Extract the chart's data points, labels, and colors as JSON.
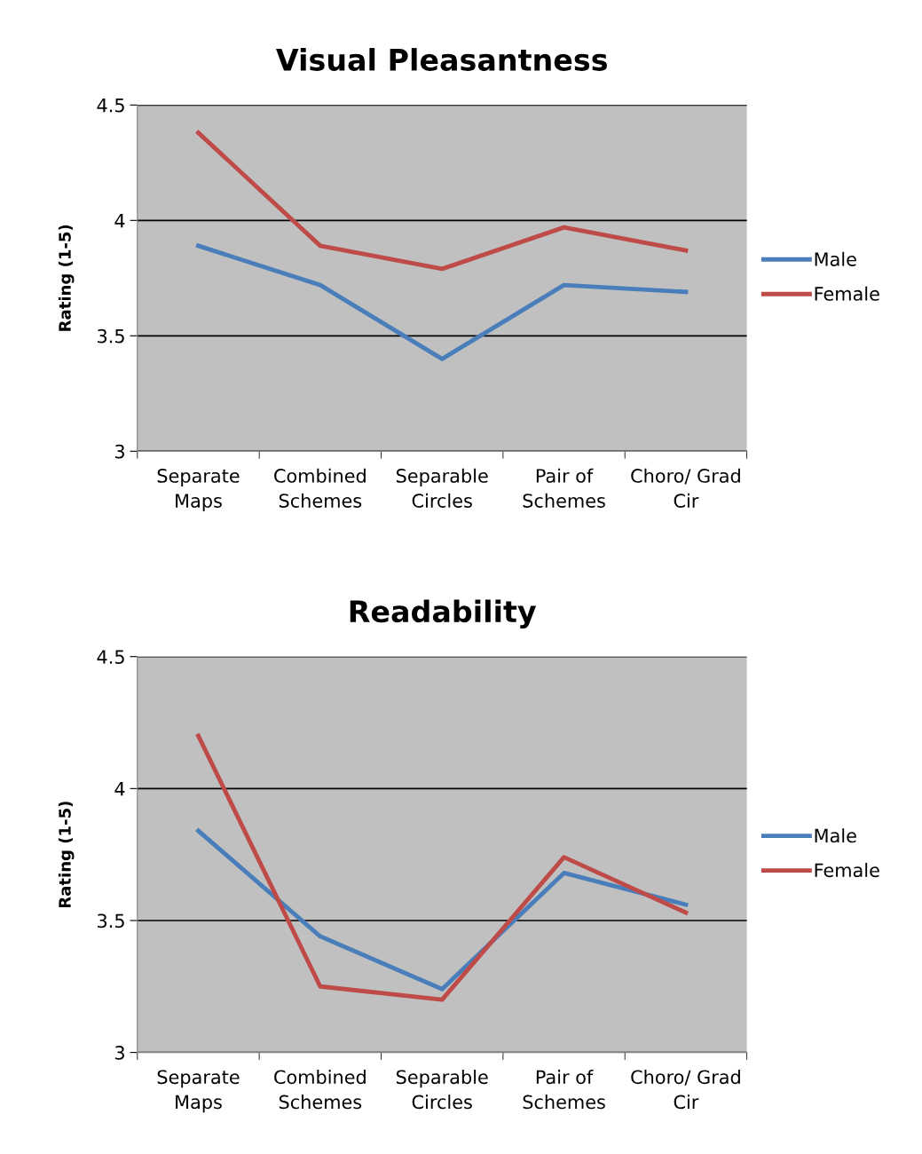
{
  "chart_data": [
    {
      "type": "line",
      "title": "Visual Pleasantness",
      "ylabel": "Rating (1-5)",
      "categories": [
        "Separate Maps",
        "Combined Schemes",
        "Separable Circles",
        "Pair of Schemes",
        "Choro/ Grad Cir"
      ],
      "series": [
        {
          "name": "Male",
          "color": "#4a7ebb",
          "values": [
            3.89,
            3.72,
            3.4,
            3.72,
            3.69
          ]
        },
        {
          "name": "Female",
          "color": "#be4b48",
          "values": [
            4.38,
            3.89,
            3.79,
            3.97,
            3.87
          ]
        }
      ],
      "ylim": [
        3,
        4.5
      ],
      "yticks": [
        3,
        3.5,
        4,
        4.5
      ],
      "grid": "y",
      "legend": "right",
      "marker": "none"
    },
    {
      "type": "line",
      "title": "Readability",
      "ylabel": "Rating (1-5)",
      "categories": [
        "Separate Maps",
        "Combined Schemes",
        "Separable Circles",
        "Pair of Schemes",
        "Choro/ Grad Cir"
      ],
      "series": [
        {
          "name": "Male",
          "color": "#4a7ebb",
          "values": [
            3.84,
            3.44,
            3.24,
            3.68,
            3.56
          ]
        },
        {
          "name": "Female",
          "color": "#be4b48",
          "values": [
            4.2,
            3.25,
            3.2,
            3.74,
            3.53
          ]
        }
      ],
      "ylim": [
        3,
        4.5
      ],
      "yticks": [
        3,
        3.5,
        4,
        4.5
      ],
      "grid": "y",
      "legend": "right",
      "marker": "none"
    }
  ]
}
